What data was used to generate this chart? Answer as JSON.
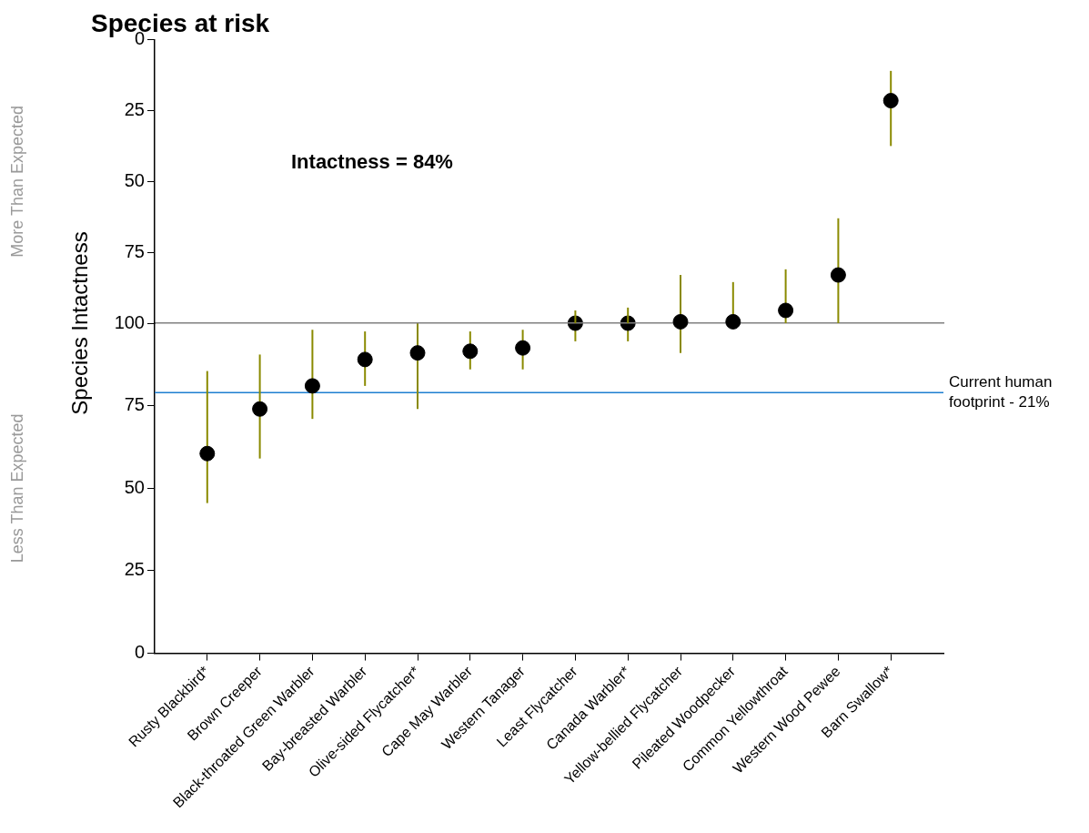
{
  "chart_data": [
    {
      "type": "scatter",
      "title": "Species at risk",
      "categories": [
        "Rusty Blackbird*",
        "Brown Creeper",
        "Black-throated Green Warbler",
        "Bay-breasted Warbler",
        "Olive-sided Flycatcher*",
        "Cape May Warbler",
        "Western Tanager",
        "Least Flycatcher",
        "Canada Warbler*",
        "Yellow-bellied Flycatcher",
        "Pileated Woodpecker",
        "Common Yellowthroat",
        "Western Wood Pewee",
        "Barn Swallow*"
      ],
      "series": [
        {
          "color": "#000000",
          "values": [
            null,
            null,
            null,
            null,
            null,
            null,
            null,
            null,
            null,
            99.5,
            99.5,
            95.5,
            83,
            21.5
          ],
          "errors": [
            null,
            null,
            null,
            null,
            null,
            null,
            null,
            null,
            null,
            null,
            [
              85.5,
              99.5
            ],
            [
              81,
              100
            ],
            [
              63,
              100
            ],
            [
              11,
              37.5
            ]
          ]
        },
        {
          "type": "line",
          "marker": "none",
          "color": "#8a8a00",
          "x": [
            "Least Flycatcher",
            "Least Flycatcher"
          ],
          "values": [
            100,
            95.5
          ]
        },
        {
          "type": "line",
          "marker": "none",
          "color": "#8a8a00",
          "x": [
            "Canada Warbler*",
            "Canada Warbler*"
          ],
          "values": [
            100,
            94.5
          ]
        },
        {
          "type": "line",
          "marker": "none",
          "color": "#8a8a00",
          "x": [
            "Yellow-bellied Flycatcher",
            "Yellow-bellied Flycatcher"
          ],
          "values": [
            100,
            83
          ]
        }
      ],
      "ylim": [
        100,
        0
      ],
      "yticks": [
        0,
        25,
        50,
        75
      ],
      "marker": "circle",
      "grid": false,
      "legend": false,
      "tick_labels": "y",
      "annotations": [
        "Intactness = 84%",
        "More Than Expected"
      ]
    },
    {
      "type": "scatter",
      "ylabel": "Species Intactness",
      "categories": [
        "Rusty Blackbird*",
        "Brown Creeper",
        "Black-throated Green Warbler",
        "Bay-breasted Warbler",
        "Olive-sided Flycatcher*",
        "Cape May Warbler",
        "Western Tanager",
        "Least Flycatcher",
        "Canada Warbler*",
        "Yellow-bellied Flycatcher",
        "Pileated Woodpecker",
        "Common Yellowthroat",
        "Western Wood Pewee",
        "Barn Swallow*"
      ],
      "series": [
        {
          "color": "#000000",
          "values": [
            60.5,
            74,
            81,
            89,
            91,
            91.5,
            92.5,
            100,
            100,
            null,
            null,
            null,
            null,
            null
          ],
          "errors": [
            [
              45.5,
              85.5
            ],
            [
              59,
              90.5
            ],
            [
              71,
              98
            ],
            [
              81,
              97.5
            ],
            [
              74,
              100
            ],
            [
              86,
              97.5
            ],
            [
              86,
              98
            ],
            null,
            null,
            null,
            null,
            null,
            null,
            null
          ]
        },
        {
          "type": "line",
          "marker": "none",
          "color": "#8a8a00",
          "x": [
            "Least Flycatcher",
            "Least Flycatcher"
          ],
          "values": [
            94.5,
            100
          ]
        },
        {
          "type": "line",
          "marker": "none",
          "color": "#8a8a00",
          "x": [
            "Canada Warbler*",
            "Canada Warbler*"
          ],
          "values": [
            94.5,
            100
          ]
        },
        {
          "type": "line",
          "marker": "none",
          "color": "#8a8a00",
          "x": [
            "Yellow-bellied Flycatcher",
            "Yellow-bellied Flycatcher"
          ],
          "values": [
            91,
            100
          ]
        }
      ],
      "ylim": [
        0,
        100
      ],
      "yticks": [
        0,
        25,
        50,
        75,
        100
      ],
      "marker": "circle",
      "grid": false,
      "legend": false,
      "ref_lines": [
        {
          "axis": "y",
          "value": 79,
          "label": "Current human footprint - 21%",
          "color": "#1f7fd0"
        }
      ],
      "annotations": [
        "Less Than Expected"
      ]
    }
  ]
}
